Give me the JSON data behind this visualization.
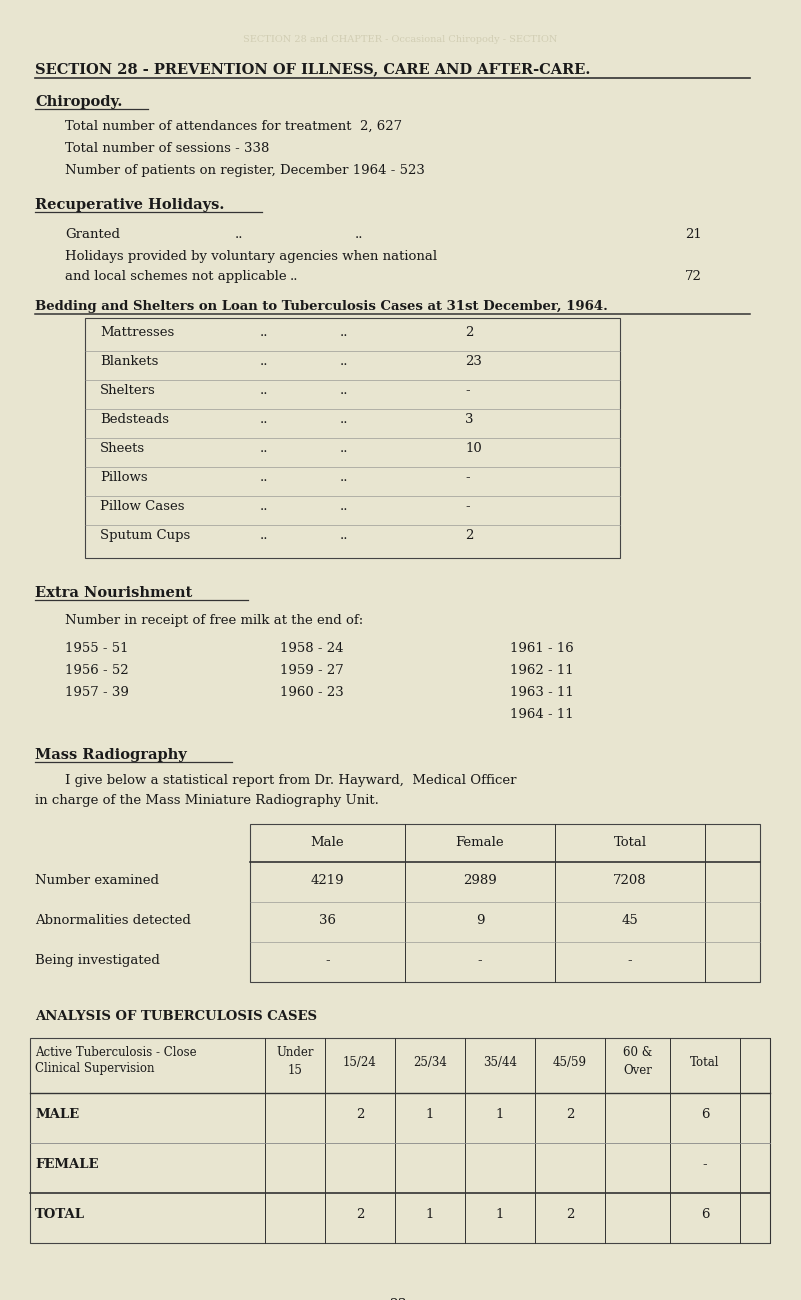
{
  "bg_color": "#e8e5d0",
  "text_color": "#1a1a1a",
  "title": "SECTION 28 - PREVENTION OF ILLNESS, CARE AND AFTER-CARE.",
  "chiropody_lines": [
    "Total number of attendances for treatment  2, 627",
    "Total number of sessions - 338",
    "Number of patients on register, December 1964 - 523"
  ],
  "bedding_items": [
    [
      "Mattresses",
      "..",
      "..",
      "2"
    ],
    [
      "Blankets",
      "..",
      "..",
      "23"
    ],
    [
      "Shelters",
      "..",
      "..",
      "-"
    ],
    [
      "Bedsteads",
      "..",
      "..",
      "3"
    ],
    [
      "Sheets",
      "..",
      "..",
      "10"
    ],
    [
      "Pillows",
      "..",
      "..",
      "-"
    ],
    [
      "Pillow Cases",
      "..",
      "..",
      "-"
    ],
    [
      "Sputum Cups",
      "..",
      "..",
      "2"
    ]
  ],
  "nourishment_data": [
    [
      "1955 - 51",
      "1958 - 24",
      "1961 - 16"
    ],
    [
      "1956 - 52",
      "1959 - 27",
      "1962 - 11"
    ],
    [
      "1957 - 39",
      "1960 - 23",
      "1963 - 11"
    ],
    [
      "",
      "",
      "1964 - 11"
    ]
  ],
  "radiography_rows": [
    [
      "Number examined",
      "4219",
      "2989",
      "7208"
    ],
    [
      "Abnormalities detected",
      "36",
      "9",
      "45"
    ],
    [
      "Being investigated",
      "-",
      "-",
      "-"
    ]
  ],
  "tb_rows": [
    [
      "MALE",
      "",
      "2",
      "1",
      "1",
      "2",
      "",
      "6"
    ],
    [
      "FEMALE",
      "",
      "",
      "",
      "",
      "",
      "",
      "-"
    ],
    [
      "TOTAL",
      "",
      "2",
      "1",
      "1",
      "2",
      "",
      "6"
    ]
  ]
}
